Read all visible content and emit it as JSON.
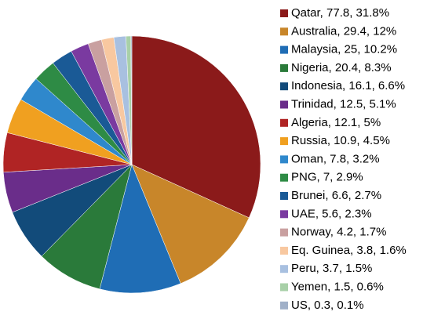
{
  "chart_data": {
    "type": "pie",
    "categories": [
      "Qatar, 77.8, 31.8%",
      "Australia, 29.4, 12%",
      "Malaysia, 25, 10.2%",
      "Nigeria, 20.4, 8.3%",
      "Indonesia, 16.1, 6.6%",
      "Trinidad, 12.5, 5.1%",
      "Algeria, 12.1, 5%",
      "Russia, 10.9, 4.5%",
      "Oman, 7.8, 3.2%",
      "PNG, 7, 2.9%",
      "Brunei, 6.6, 2.7%",
      "UAE, 5.6, 2.3%",
      "Norway, 4.2, 1.7%",
      "Eq. Guinea, 3.8, 1.6%",
      "Peru, 3.7, 1.5%",
      "Yemen, 1.5, 0.6%",
      "US, 0.3, 0.1%"
    ],
    "values": [
      77.8,
      29.4,
      25,
      20.4,
      16.1,
      12.5,
      12.1,
      10.9,
      7.8,
      7,
      6.6,
      5.6,
      4.2,
      3.8,
      3.7,
      1.5,
      0.3
    ],
    "colors": [
      "#8b1a1a",
      "#c8862a",
      "#1f6db5",
      "#2a7a3a",
      "#124b7a",
      "#6a2d8a",
      "#b02424",
      "#f0a020",
      "#2f88cc",
      "#2e8b45",
      "#1a5a96",
      "#7a3aa0",
      "#c9a0a0",
      "#f8c8a0",
      "#a8c0e0",
      "#a8d0a8",
      "#a0b0c8"
    ],
    "legend": "right"
  }
}
